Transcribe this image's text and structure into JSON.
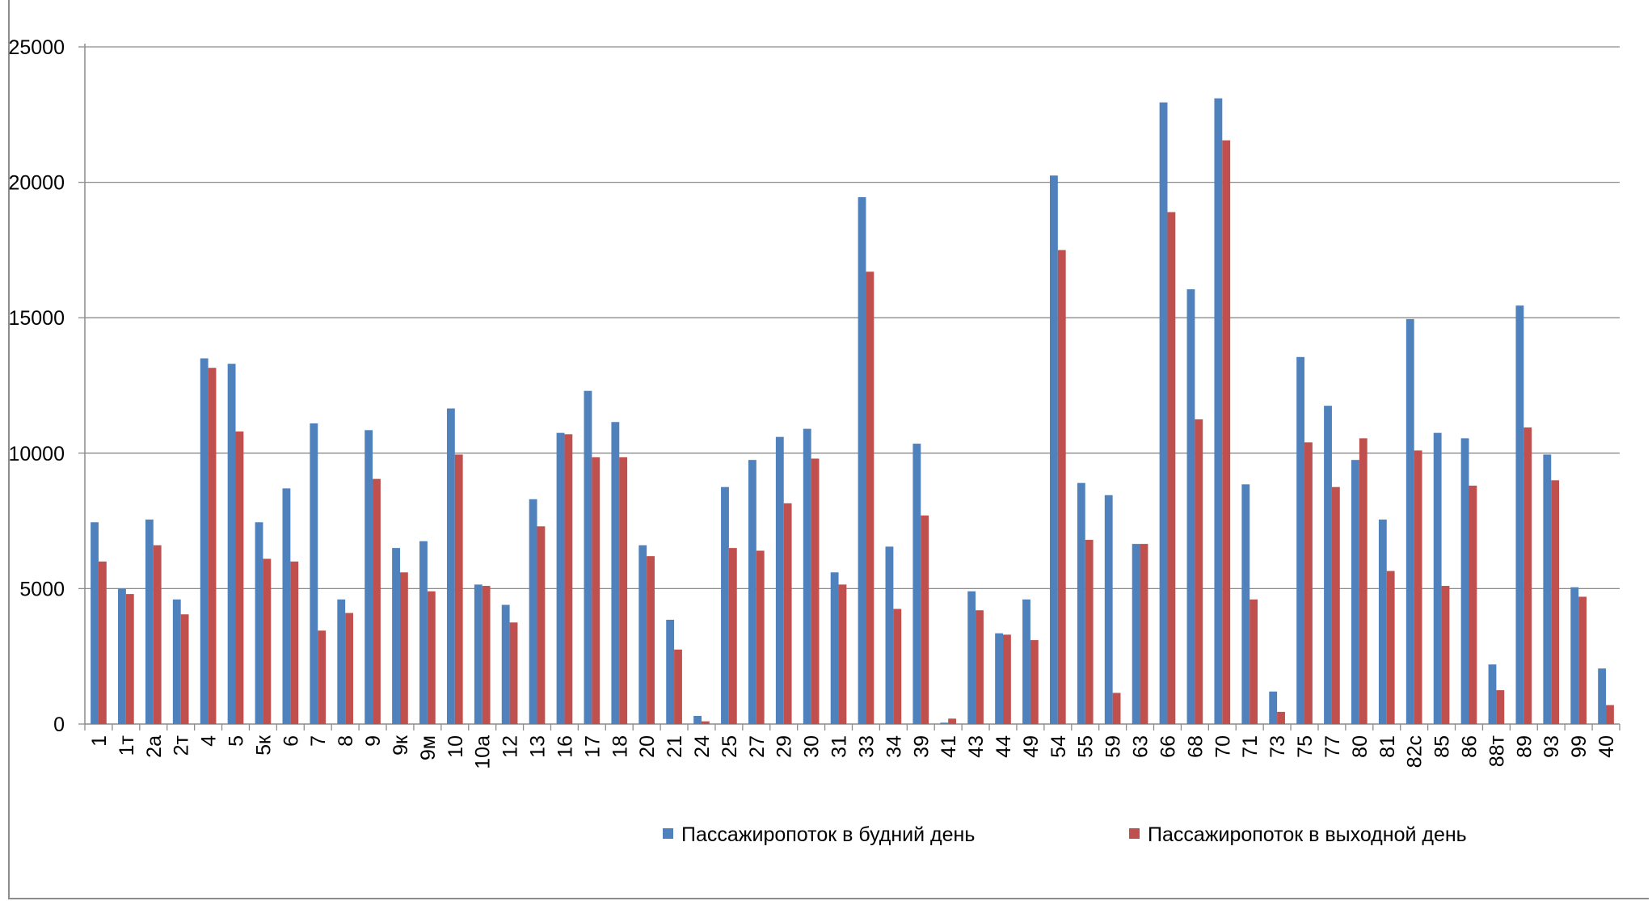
{
  "chart_data": {
    "type": "bar",
    "title": "",
    "xlabel": "",
    "ylabel": "",
    "ylim": [
      0,
      25000
    ],
    "yticks": [
      0,
      5000,
      10000,
      15000,
      20000,
      25000
    ],
    "grid": true,
    "legend": "bottom",
    "categories": [
      "1",
      "1т",
      "2а",
      "2т",
      "4",
      "5",
      "5к",
      "6",
      "7",
      "8",
      "9",
      "9к",
      "9м",
      "10",
      "10а",
      "12",
      "13",
      "16",
      "17",
      "18",
      "20",
      "21",
      "24",
      "25",
      "27",
      "29",
      "30",
      "31",
      "33",
      "34",
      "39",
      "41",
      "43",
      "44",
      "49",
      "54",
      "55",
      "59",
      "63",
      "66",
      "68",
      "70",
      "71",
      "73",
      "75",
      "77",
      "80",
      "81",
      "82с",
      "85",
      "86",
      "88т",
      "89",
      "93",
      "99",
      "40"
    ],
    "series": [
      {
        "name": "Пассажиропоток в будний день",
        "color": "#4f81bd",
        "values": [
          7450,
          5000,
          7550,
          4600,
          13500,
          13300,
          7450,
          8700,
          11100,
          4600,
          10850,
          6500,
          6750,
          11650,
          5150,
          4400,
          8300,
          10750,
          12300,
          11150,
          6600,
          3850,
          300,
          8750,
          9750,
          10600,
          10900,
          5600,
          19450,
          6550,
          10350,
          50,
          4900,
          3350,
          4600,
          20250,
          8900,
          8450,
          6650,
          22950,
          16050,
          23100,
          8850,
          1200,
          13550,
          11750,
          9750,
          7550,
          14950,
          10750,
          10550,
          2200,
          15450,
          9950,
          5050,
          2050
        ]
      },
      {
        "name": "Пассажиропоток в выходной день",
        "color": "#c0504d",
        "values": [
          6000,
          4800,
          6600,
          4050,
          13150,
          10800,
          6100,
          6000,
          3450,
          4100,
          9050,
          5600,
          4900,
          9950,
          5100,
          3750,
          7300,
          10700,
          9850,
          9850,
          6200,
          2750,
          100,
          6500,
          6400,
          8150,
          9800,
          5150,
          16700,
          4250,
          7700,
          200,
          4200,
          3300,
          3100,
          17500,
          6800,
          1150,
          6650,
          18900,
          11250,
          21550,
          4600,
          450,
          10400,
          8750,
          10550,
          5650,
          10100,
          5100,
          8800,
          1250,
          10950,
          9000,
          4700,
          700
        ]
      }
    ]
  }
}
